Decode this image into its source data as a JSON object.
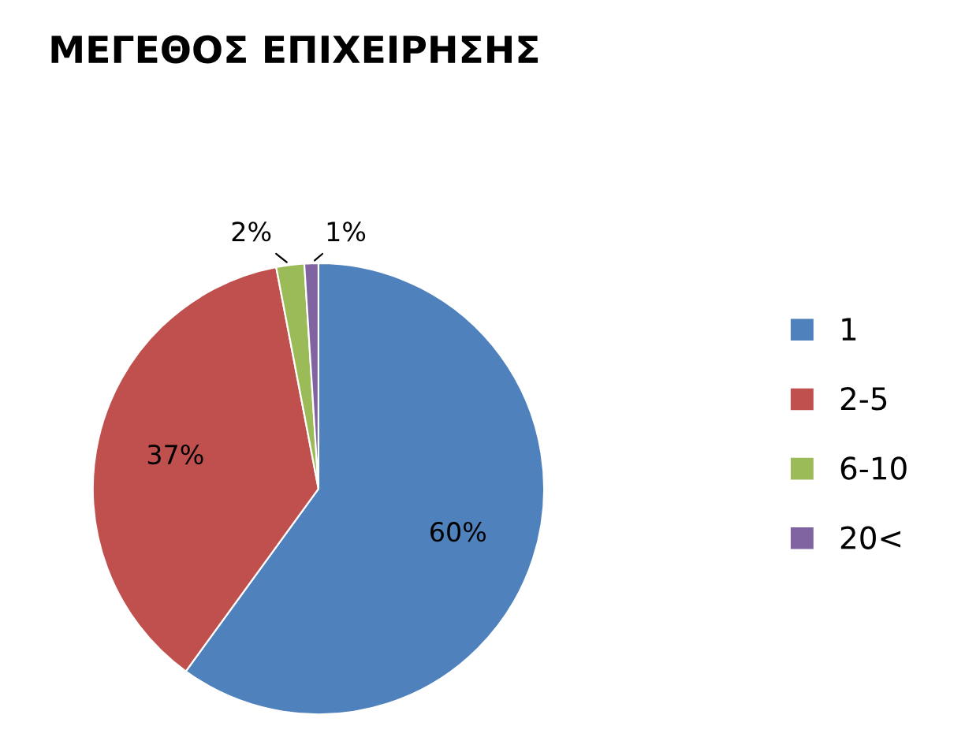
{
  "chart_data": {
    "type": "pie",
    "title": "ΜΕΓΕΘΟΣ ΕΠΙΧΕΙΡΗΣΗΣ",
    "categories": [
      "1",
      "2-5",
      "6-10",
      "20<"
    ],
    "values": [
      60,
      37,
      2,
      1
    ],
    "colors": [
      "#4f81bd",
      "#c0504d",
      "#9bbb59",
      "#8064a2"
    ],
    "value_labels": [
      "60%",
      "37%",
      "2%",
      "1%"
    ],
    "legend": "right"
  }
}
